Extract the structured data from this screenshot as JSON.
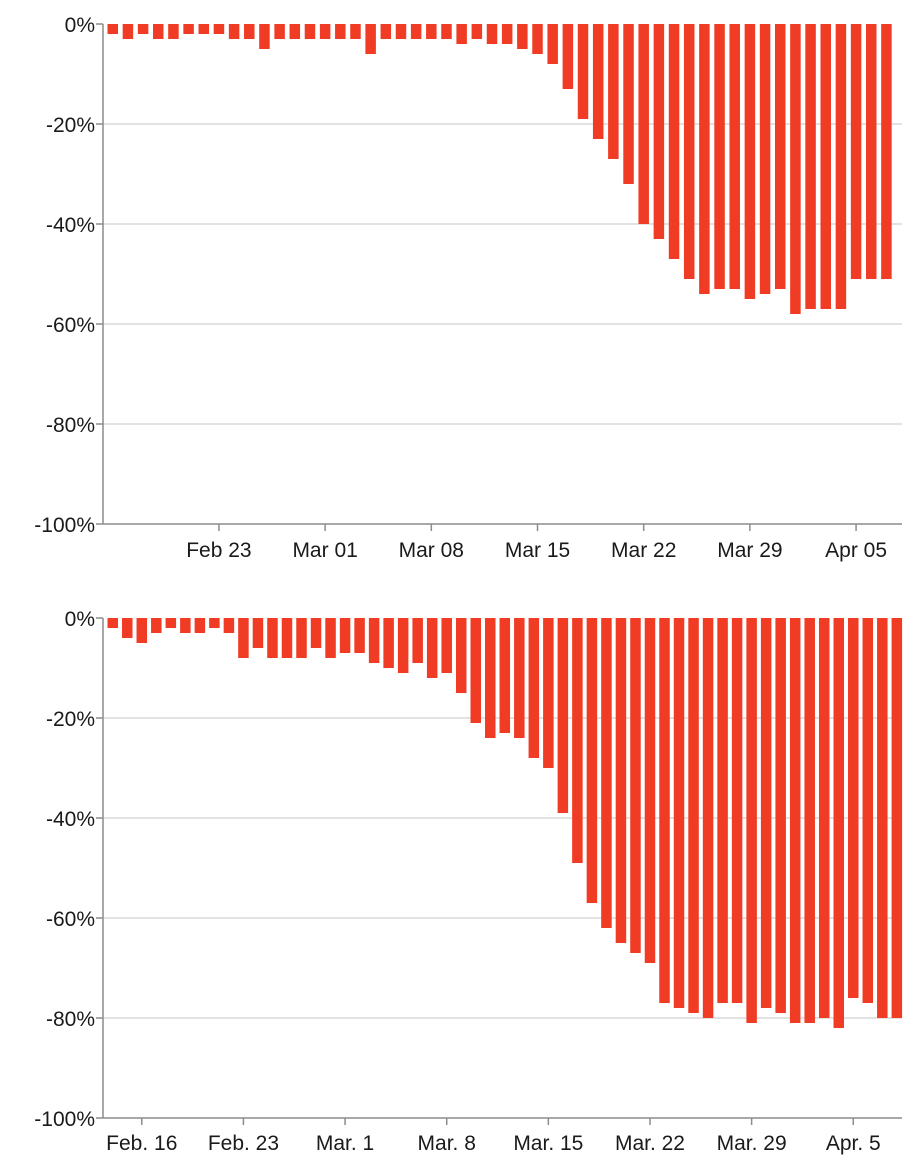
{
  "colors": {
    "bar": "#f03c24",
    "grid": "#d9d9d9",
    "axis": "#8c8c8c",
    "text": "#1a1a1a"
  },
  "chart_data": [
    {
      "type": "bar",
      "title": "",
      "xlabel": "",
      "ylabel": "",
      "ylim": [
        -100,
        0
      ],
      "yticks": [
        0,
        -20,
        -40,
        -60,
        -80,
        -100
      ],
      "ytick_labels": [
        "0%",
        "-20%",
        "-40%",
        "-60%",
        "-80%",
        "-100%"
      ],
      "grid": true,
      "start_date": "2020-02-16",
      "xtick_labels": [
        "Feb 23",
        "Mar 01",
        "Mar 08",
        "Mar 15",
        "Mar 22",
        "Mar 29",
        "Apr 05"
      ],
      "xtick_dates": [
        "2020-02-23",
        "2020-03-01",
        "2020-03-08",
        "2020-03-15",
        "2020-03-22",
        "2020-03-29",
        "2020-04-05"
      ],
      "values": [
        -2,
        -3,
        -2,
        -3,
        -3,
        -2,
        -2,
        -2,
        -3,
        -3,
        -5,
        -3,
        -3,
        -3,
        -3,
        -3,
        -3,
        -6,
        -3,
        -3,
        -3,
        -3,
        -3,
        -4,
        -3,
        -4,
        -4,
        -5,
        -6,
        -8,
        -13,
        -19,
        -23,
        -27,
        -32,
        -40,
        -43,
        -47,
        -51,
        -54,
        -53,
        -53,
        -55,
        -54,
        -53,
        -58,
        -57,
        -57,
        -57,
        -51,
        -51,
        -51
      ]
    },
    {
      "type": "bar",
      "title": "",
      "xlabel": "",
      "ylabel": "",
      "ylim": [
        -100,
        0
      ],
      "yticks": [
        0,
        -20,
        -40,
        -60,
        -80,
        -100
      ],
      "ytick_labels": [
        "0%",
        "-20%",
        "-40%",
        "-60%",
        "-80%",
        "-100%"
      ],
      "grid": true,
      "start_date": "2020-02-14",
      "xtick_labels": [
        "Feb. 16",
        "Feb. 23",
        "Mar. 1",
        "Mar. 8",
        "Mar. 15",
        "Mar. 22",
        "Mar. 29",
        "Apr. 5"
      ],
      "xtick_dates": [
        "2020-02-16",
        "2020-02-23",
        "2020-03-01",
        "2020-03-08",
        "2020-03-15",
        "2020-03-22",
        "2020-03-29",
        "2020-04-05"
      ],
      "values": [
        -2,
        -4,
        -5,
        -3,
        -2,
        -3,
        -3,
        -2,
        -3,
        -8,
        -6,
        -8,
        -8,
        -8,
        -6,
        -8,
        -7,
        -7,
        -9,
        -10,
        -11,
        -9,
        -12,
        -11,
        -15,
        -21,
        -24,
        -23,
        -24,
        -28,
        -30,
        -39,
        -49,
        -57,
        -62,
        -65,
        -67,
        -69,
        -77,
        -78,
        -79,
        -80,
        -77,
        -77,
        -81,
        -78,
        -79,
        -81,
        -81,
        -80,
        -82,
        -76,
        -77,
        -80,
        -80
      ]
    }
  ]
}
